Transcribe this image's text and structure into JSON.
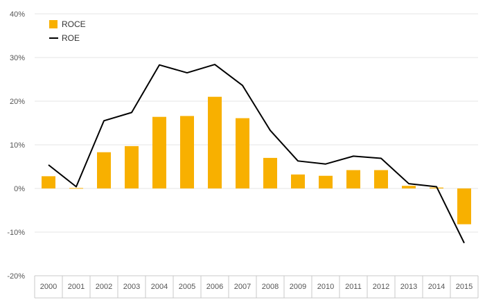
{
  "chart_data": {
    "type": "bar",
    "categories": [
      "2000",
      "2001",
      "2002",
      "2003",
      "2004",
      "2005",
      "2006",
      "2007",
      "2008",
      "2009",
      "2010",
      "2011",
      "2012",
      "2013",
      "2014",
      "2015"
    ],
    "series": [
      {
        "name": "ROCE",
        "type": "bar",
        "color": "#f8b000",
        "values": [
          2.8,
          0.1,
          8.3,
          9.7,
          16.4,
          16.6,
          21.0,
          16.1,
          7.0,
          3.2,
          2.9,
          4.2,
          4.2,
          0.6,
          0.2,
          -8.2
        ]
      },
      {
        "name": "ROE",
        "type": "line",
        "color": "#000000",
        "values": [
          5.4,
          0.4,
          15.5,
          17.4,
          28.3,
          26.5,
          28.4,
          23.6,
          13.3,
          6.3,
          5.6,
          7.4,
          6.9,
          1.1,
          0.4,
          -12.5
        ]
      }
    ],
    "y_ticks": [
      "40%",
      "30%",
      "20%",
      "10%",
      "0%",
      "-10%",
      "-20%"
    ],
    "ylim": [
      -20,
      40
    ],
    "y_unit": "%",
    "grid": true,
    "legend": "top-left"
  }
}
